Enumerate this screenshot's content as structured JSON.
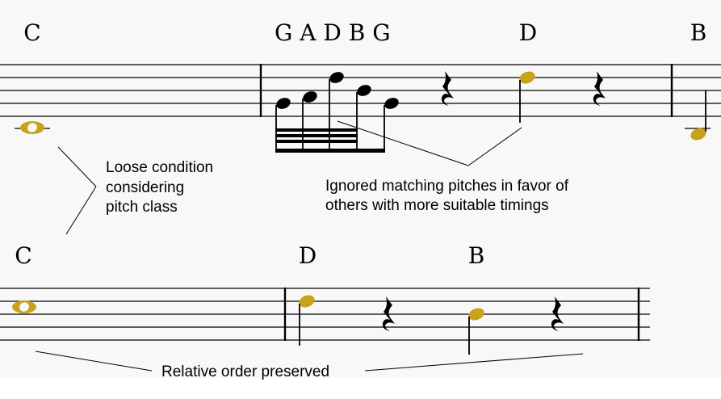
{
  "colors": {
    "highlight": "#c9a21a",
    "ink": "#000000",
    "background": "#ffffff",
    "band": "#f8f8f8"
  },
  "top_labels": {
    "c": "C",
    "gadbg": "G A D B G",
    "d": "D",
    "b": "B"
  },
  "bottom_labels": {
    "c": "C",
    "d": "D",
    "b": "B"
  },
  "annotations": {
    "loose": [
      "Loose condition",
      "considering",
      "pitch class"
    ],
    "ignored": [
      "Ignored matching pitches in favor of",
      "others with more suitable timings"
    ],
    "order": "Relative order preserved"
  },
  "icons": {
    "rest": "quarter-rest-icon",
    "whole": "whole-note-icon",
    "quarter": "quarter-note-icon",
    "sixteenth_group": "sixteenth-note-group-icon"
  }
}
